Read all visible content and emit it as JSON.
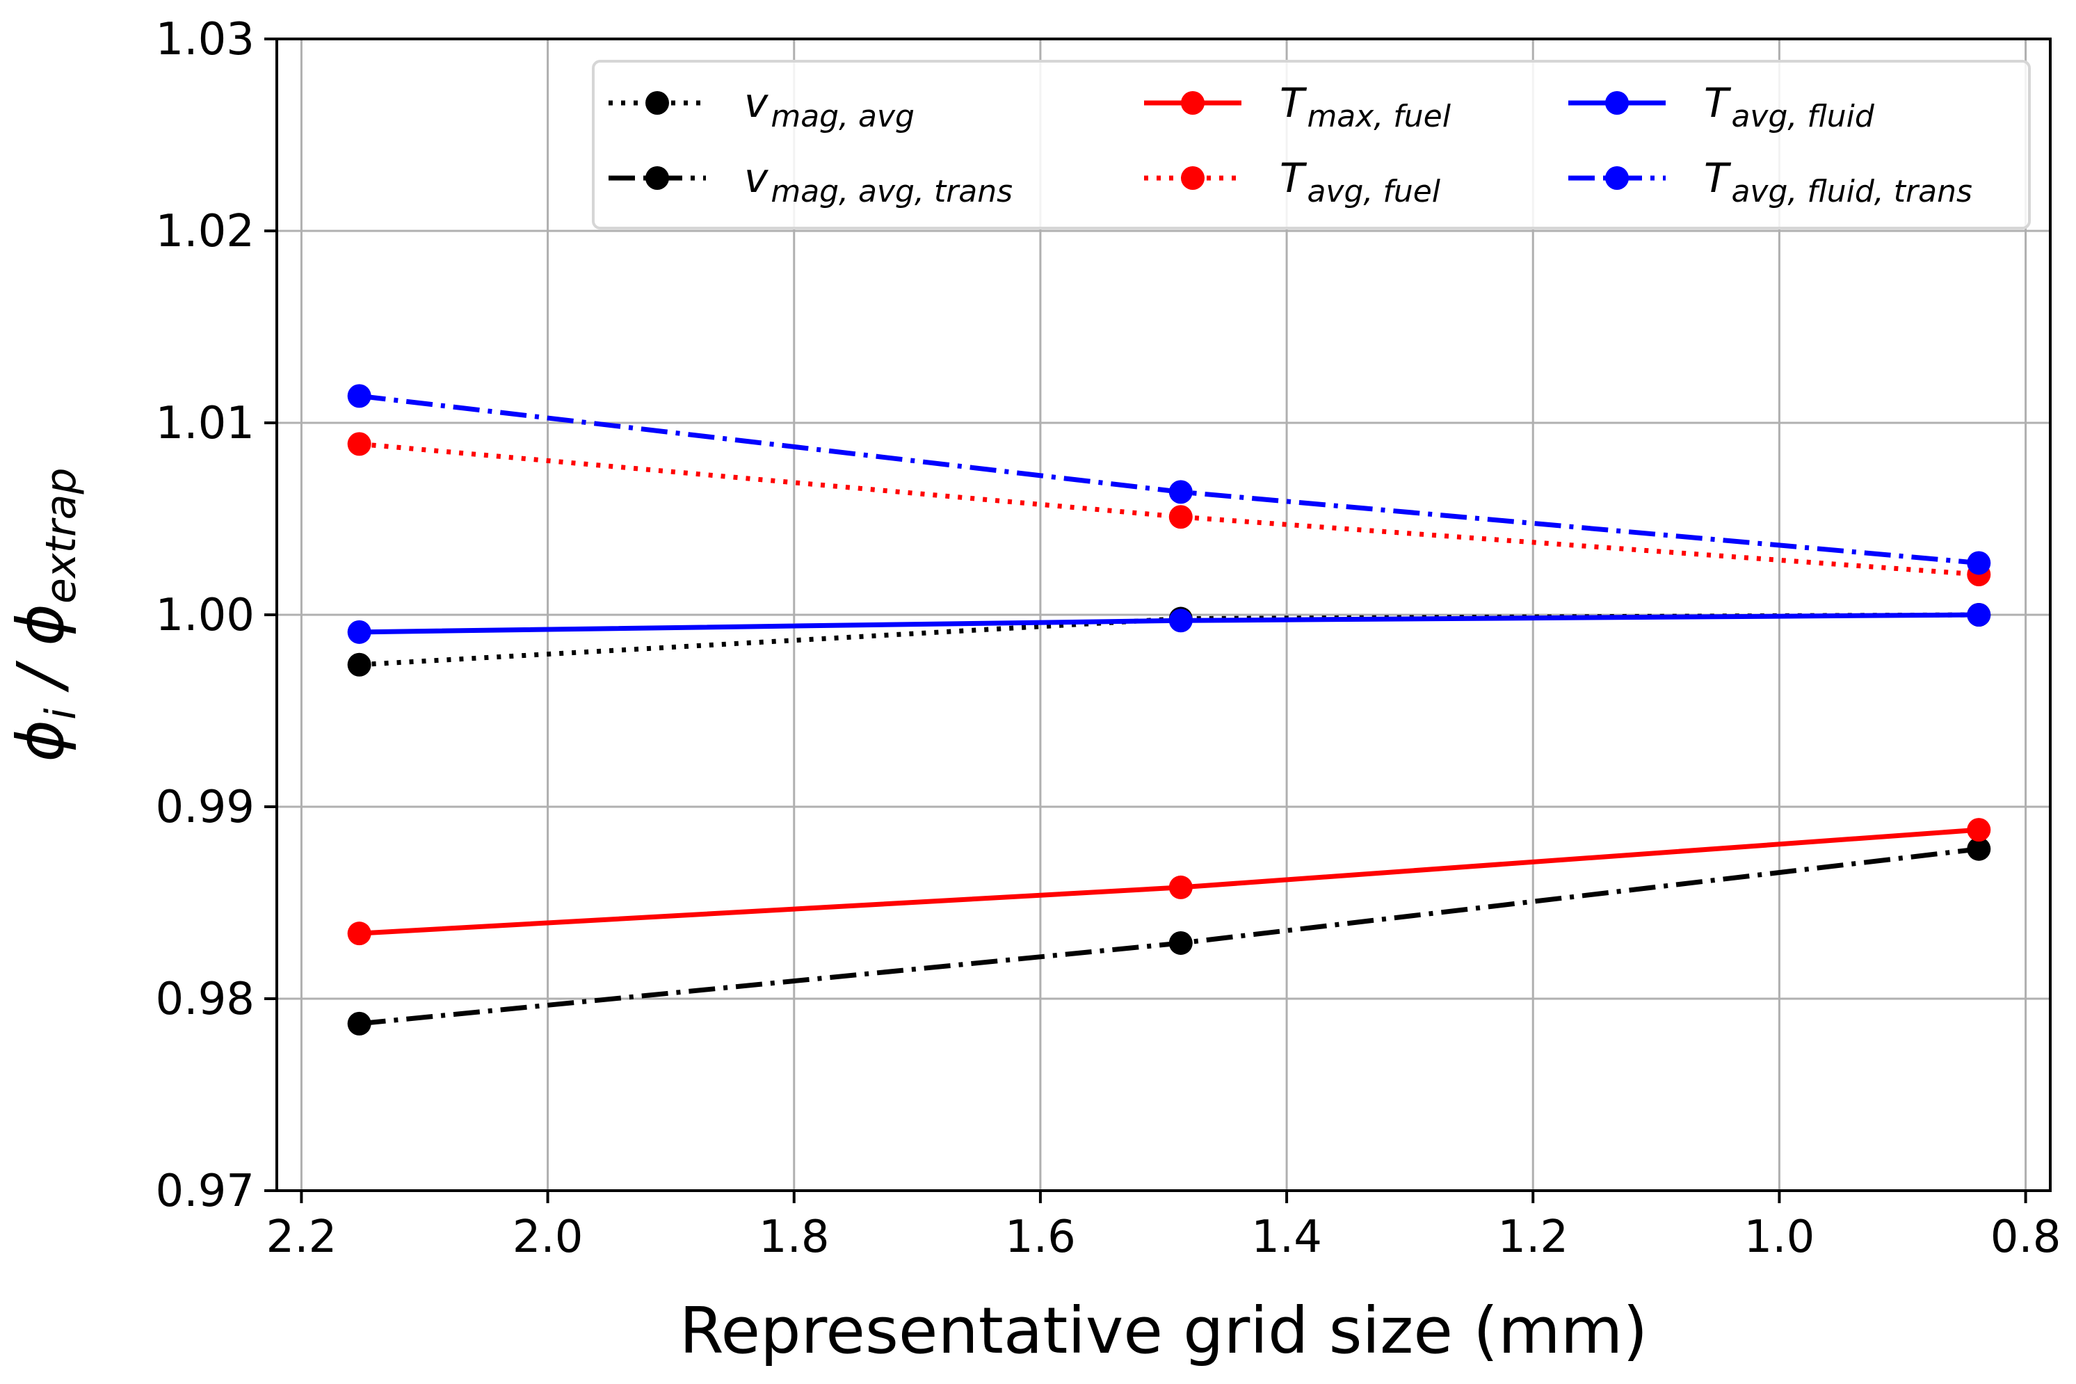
{
  "chart_data": {
    "type": "line",
    "xlabel": "Representative grid size (mm)",
    "ylabel": "ϕi / ϕextrap",
    "ylabel_parts": {
      "main1": "ϕ",
      "sub1": "i",
      "sep": " / ",
      "main2": "ϕ",
      "sub2": "extrap"
    },
    "xlim": [
      2.22,
      0.78
    ],
    "ylim": [
      0.97,
      1.03
    ],
    "x_reversed": true,
    "grid": true,
    "legend_position": "top-right",
    "xticks": [
      2.2,
      2.0,
      1.8,
      1.6,
      1.4,
      1.2,
      1.0,
      0.8
    ],
    "xtick_labels": [
      "2.2",
      "2.0",
      "1.8",
      "1.6",
      "1.4",
      "1.2",
      "1.0",
      "0.8"
    ],
    "yticks": [
      0.97,
      0.98,
      0.99,
      1.0,
      1.01,
      1.02,
      1.03
    ],
    "ytick_labels": [
      "0.97",
      "0.98",
      "0.99",
      "1.00",
      "1.01",
      "1.02",
      "1.03"
    ],
    "x": [
      2.153,
      1.486,
      0.838
    ],
    "series": [
      {
        "name": "v mag, avg",
        "main": "v",
        "sub": "mag, avg",
        "color": "#000000",
        "dash": "dotted",
        "values": [
          0.9974,
          0.9998,
          1.0
        ]
      },
      {
        "name": "v mag, avg, trans",
        "main": "v",
        "sub": "mag, avg, trans",
        "color": "#000000",
        "dash": "dashdot",
        "values": [
          0.9787,
          0.9829,
          0.9878
        ]
      },
      {
        "name": "T max, fuel",
        "main": "T",
        "sub": "max, fuel",
        "color": "#ff0000",
        "dash": "solid",
        "values": [
          0.9834,
          0.9858,
          0.9888
        ]
      },
      {
        "name": "T avg, fuel",
        "main": "T",
        "sub": "avg, fuel",
        "color": "#ff0000",
        "dash": "dotted",
        "values": [
          1.0089,
          1.0051,
          1.0021
        ]
      },
      {
        "name": "T avg, fluid",
        "main": "T",
        "sub": "avg, fluid",
        "color": "#0000ff",
        "dash": "solid",
        "values": [
          0.9991,
          0.9997,
          1.0
        ]
      },
      {
        "name": "T avg, fluid, trans",
        "main": "T",
        "sub": "avg, fluid, trans",
        "color": "#0000ff",
        "dash": "dashdot",
        "values": [
          1.0114,
          1.0064,
          1.0027
        ]
      }
    ]
  }
}
